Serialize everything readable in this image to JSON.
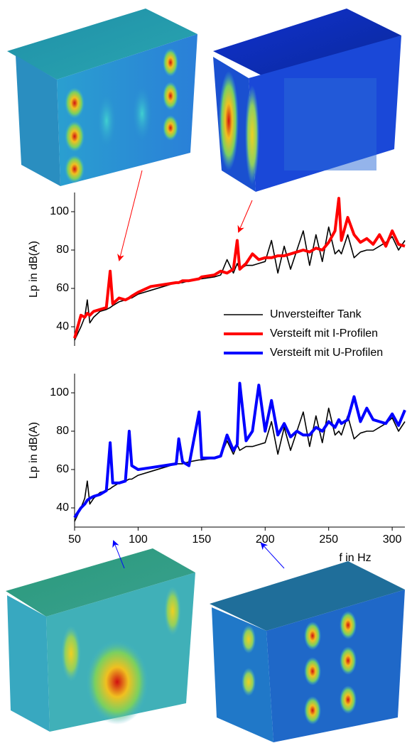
{
  "chart_data": [
    {
      "type": "line",
      "ylabel": "Lp in dB(A)",
      "x": [
        50,
        55,
        58,
        60,
        62,
        65,
        70,
        75,
        78,
        80,
        85,
        90,
        93,
        95,
        100,
        110,
        120,
        130,
        132,
        135,
        140,
        148,
        150,
        160,
        165,
        170,
        175,
        178,
        180,
        185,
        190,
        195,
        200,
        205,
        210,
        215,
        220,
        225,
        230,
        235,
        240,
        245,
        250,
        255,
        258,
        260,
        265,
        270,
        275,
        280,
        285,
        290,
        295,
        300,
        305,
        310
      ],
      "xlim": [
        50,
        310
      ],
      "ylim": [
        30,
        110
      ],
      "yticks": [
        40,
        60,
        80,
        100
      ],
      "series": [
        {
          "name": "Versteift mit I-Profilen",
          "color": "#ff0000",
          "values": [
            34,
            46,
            45,
            47,
            46,
            48,
            49,
            50,
            69,
            52,
            55,
            54,
            55,
            56,
            58,
            61,
            62,
            63,
            63,
            64,
            64,
            65,
            66,
            67,
            69,
            68,
            70,
            85,
            70,
            73,
            78,
            75,
            76,
            76,
            77,
            77,
            78,
            79,
            80,
            79,
            81,
            80,
            84,
            90,
            107,
            85,
            97,
            88,
            84,
            86,
            83,
            88,
            82,
            90,
            83,
            82
          ]
        },
        {
          "name": "Unversteifter Tank",
          "color": "#000000",
          "values": [
            33,
            40,
            45,
            54,
            42,
            45,
            48,
            49,
            50,
            51,
            53,
            54,
            55,
            55,
            57,
            59,
            61,
            63,
            63,
            63,
            64,
            65,
            65,
            66,
            67,
            75,
            68,
            73,
            70,
            72,
            72,
            73,
            74,
            85,
            68,
            82,
            70,
            80,
            90,
            72,
            88,
            74,
            92,
            78,
            80,
            78,
            88,
            76,
            79,
            80,
            80,
            82,
            84,
            87,
            80,
            85
          ]
        }
      ]
    },
    {
      "type": "line",
      "ylabel": "Lp in dB(A)",
      "xlabel": "f in Hz",
      "x": [
        50,
        55,
        58,
        60,
        62,
        65,
        70,
        75,
        78,
        80,
        85,
        90,
        93,
        95,
        100,
        110,
        120,
        130,
        132,
        135,
        140,
        148,
        150,
        160,
        165,
        170,
        175,
        178,
        180,
        185,
        190,
        195,
        200,
        205,
        210,
        215,
        220,
        225,
        230,
        235,
        240,
        245,
        250,
        255,
        258,
        260,
        265,
        270,
        275,
        280,
        285,
        290,
        295,
        300,
        305,
        310
      ],
      "xlim": [
        50,
        310
      ],
      "ylim": [
        30,
        110
      ],
      "xticks": [
        50,
        100,
        150,
        200,
        250,
        300
      ],
      "yticks": [
        40,
        60,
        80,
        100
      ],
      "series": [
        {
          "name": "Versteift mit U-Profilen",
          "color": "#0000ff",
          "values": [
            35,
            40,
            42,
            44,
            45,
            46,
            47,
            49,
            74,
            53,
            53,
            54,
            80,
            62,
            60,
            61,
            62,
            63,
            76,
            64,
            62,
            90,
            66,
            66,
            67,
            78,
            70,
            73,
            105,
            75,
            80,
            104,
            80,
            96,
            78,
            84,
            77,
            80,
            78,
            78,
            82,
            80,
            85,
            82,
            86,
            84,
            86,
            98,
            85,
            92,
            86,
            85,
            84,
            89,
            83,
            91
          ]
        },
        {
          "name": "Unversteifter Tank",
          "color": "#000000",
          "values": [
            33,
            40,
            45,
            54,
            42,
            45,
            48,
            49,
            50,
            51,
            53,
            54,
            55,
            55,
            57,
            59,
            61,
            63,
            63,
            63,
            64,
            65,
            65,
            66,
            67,
            75,
            68,
            73,
            70,
            72,
            72,
            73,
            74,
            85,
            68,
            82,
            70,
            80,
            90,
            72,
            88,
            74,
            92,
            78,
            80,
            78,
            88,
            76,
            79,
            80,
            80,
            82,
            84,
            87,
            80,
            85
          ]
        }
      ]
    }
  ]
}
